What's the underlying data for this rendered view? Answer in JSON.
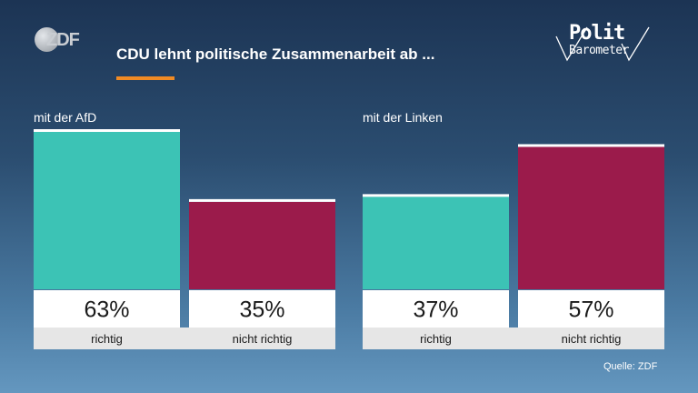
{
  "header": {
    "title": "CDU lehnt politische Zusammenarbeit ab ...",
    "brand_logo_text": "ZDF",
    "logo_line1": "Polit",
    "logo_line2": "Barometer"
  },
  "footer": {
    "source": "Quelle: ZDF"
  },
  "colors": {
    "richtig": "#3cc3b5",
    "nicht_richtig": "#9b1b4b",
    "accent": "#f08a24",
    "value_box": "#ffffff",
    "label_box": "#e6e6e6"
  },
  "chart_data": [
    {
      "type": "bar",
      "title": "mit der AfD",
      "categories": [
        "richtig",
        "nicht richtig"
      ],
      "values": [
        63,
        35
      ],
      "value_labels": [
        "63%",
        "35%"
      ],
      "colors": [
        "#3cc3b5",
        "#9b1b4b"
      ]
    },
    {
      "type": "bar",
      "title": "mit der Linken",
      "categories": [
        "richtig",
        "nicht richtig"
      ],
      "values": [
        37,
        57
      ],
      "value_labels": [
        "37%",
        "57%"
      ],
      "colors": [
        "#3cc3b5",
        "#9b1b4b"
      ]
    }
  ]
}
